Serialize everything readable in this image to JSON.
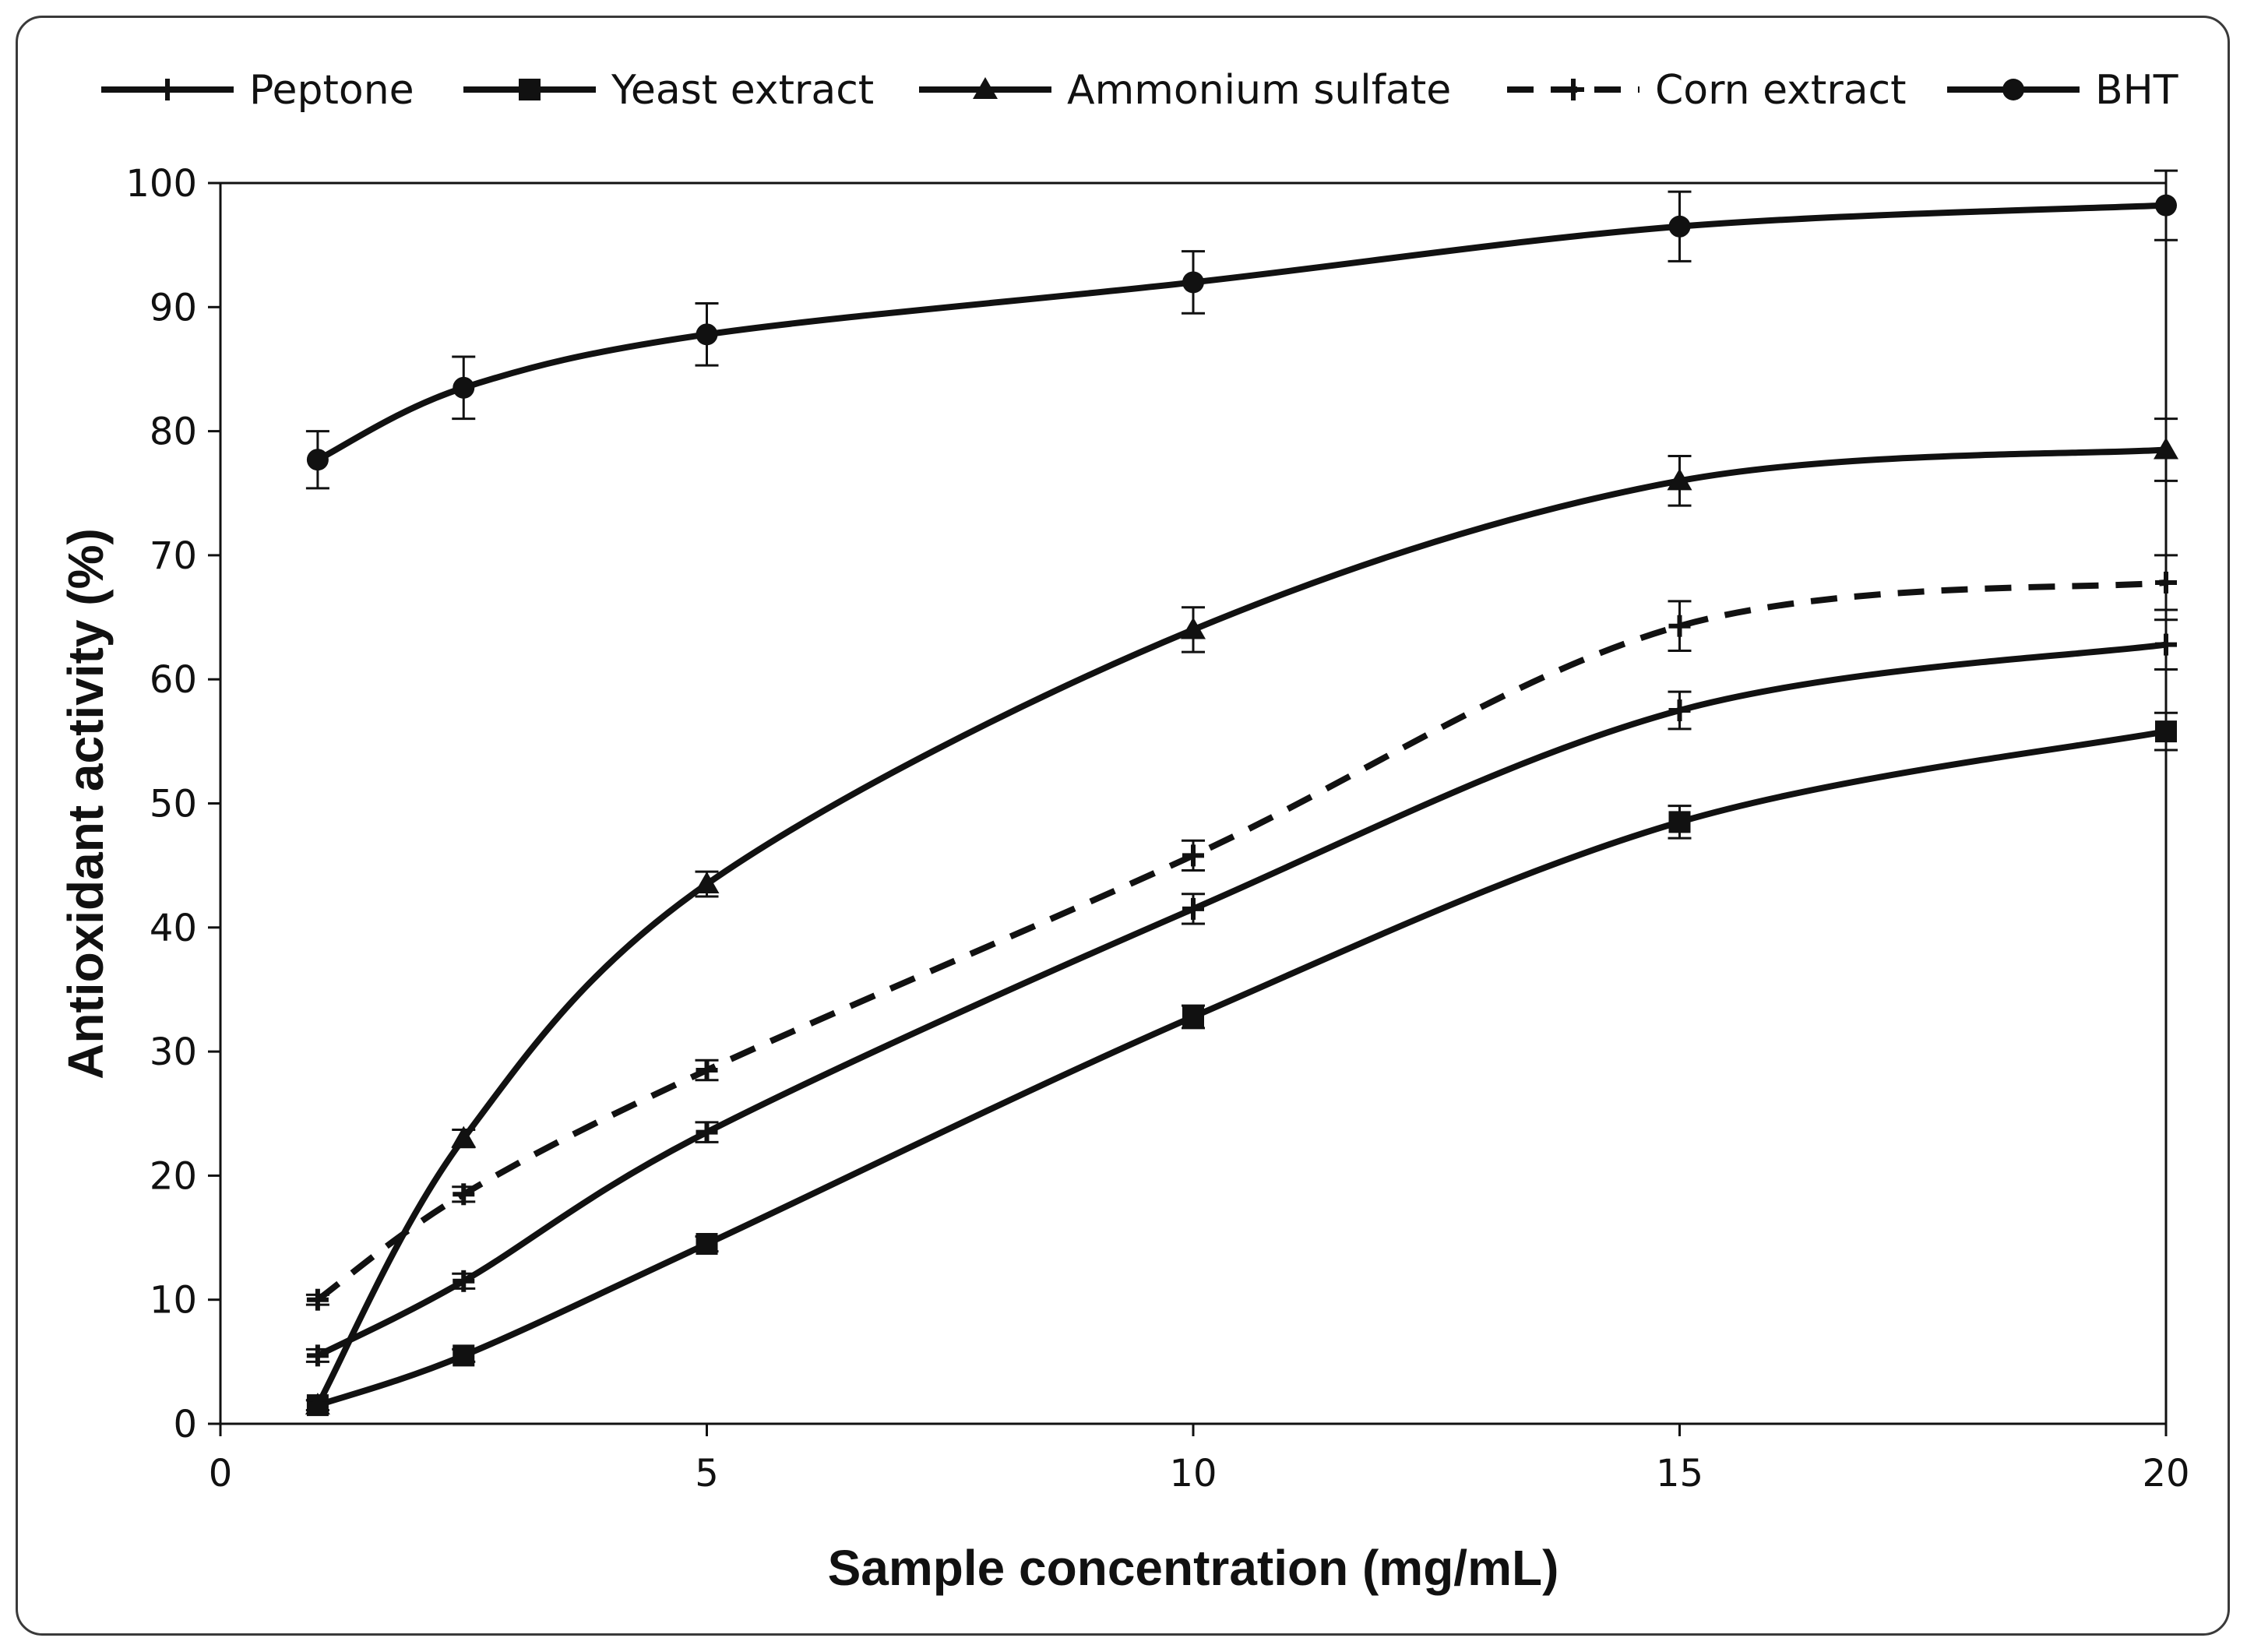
{
  "chart_data": {
    "type": "line",
    "title": "",
    "xlabel": "Sample concentration (mg/mL)",
    "ylabel": "Antioxidant activity (%)",
    "xlim": [
      0,
      20
    ],
    "ylim": [
      0,
      100
    ],
    "x_ticks": [
      "0",
      "5",
      "10",
      "15",
      "20"
    ],
    "y_ticks": [
      "0",
      "10",
      "20",
      "30",
      "40",
      "50",
      "60",
      "70",
      "80",
      "90",
      "100"
    ],
    "x": [
      1,
      2.5,
      5,
      10,
      15,
      20
    ],
    "legend_position": "top",
    "series": [
      {
        "name": "Peptone",
        "marker": "plus",
        "dash": false,
        "values": [
          5.5,
          11.5,
          23.5,
          41.5,
          57.5,
          62.8
        ],
        "errors": [
          0.5,
          0.6,
          0.8,
          1.2,
          1.5,
          2.0
        ]
      },
      {
        "name": "Yeast extract",
        "marker": "square",
        "dash": false,
        "values": [
          1.5,
          5.5,
          14.5,
          32.8,
          48.5,
          55.8
        ],
        "errors": [
          0.4,
          0.5,
          0.6,
          0.9,
          1.3,
          1.5
        ]
      },
      {
        "name": "Ammonium sulfate",
        "marker": "triangle",
        "dash": false,
        "values": [
          1.5,
          23.0,
          43.5,
          64.0,
          76.0,
          78.5
        ],
        "errors": [
          0.4,
          0.7,
          1.0,
          1.8,
          2.0,
          2.5
        ]
      },
      {
        "name": "Corn extract",
        "marker": "plus",
        "dash": true,
        "values": [
          10.0,
          18.5,
          28.5,
          45.8,
          64.3,
          67.8
        ],
        "errors": [
          0.4,
          0.6,
          0.8,
          1.2,
          2.0,
          2.2
        ]
      },
      {
        "name": "BHT",
        "marker": "circle",
        "dash": false,
        "values": [
          77.7,
          83.5,
          87.8,
          92.0,
          96.5,
          98.2
        ],
        "errors": [
          2.3,
          2.5,
          2.5,
          2.5,
          2.8,
          2.8
        ]
      }
    ]
  }
}
